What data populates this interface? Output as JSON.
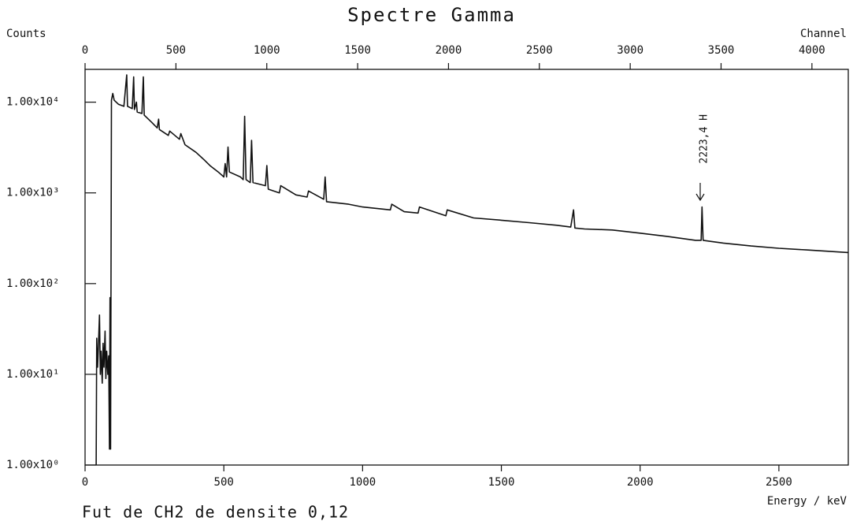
{
  "chart_data": {
    "type": "line",
    "title": "Spectre Gamma",
    "y_label": "Counts",
    "x_label": "Energy / keV",
    "x2_label": "Channel",
    "footnote": "Fut de CH2 de densite 0,12",
    "annotation": "2223,4 H",
    "color": "#111111",
    "log_y": true,
    "xlim": [
      0,
      2750
    ],
    "xticks": [
      0,
      500,
      1000,
      1500,
      2000,
      2500
    ],
    "x2lim": [
      0,
      4200
    ],
    "x2ticks": [
      0,
      500,
      1000,
      1500,
      2000,
      2500,
      3000,
      3500,
      4000
    ],
    "ylim": [
      1,
      23000
    ],
    "yticks": [
      {
        "value": 1,
        "label": "1.00x10⁰"
      },
      {
        "value": 10,
        "label": "1.00x10¹"
      },
      {
        "value": 100,
        "label": "1.00x10²"
      },
      {
        "value": 1000,
        "label": "1.00x10³"
      },
      {
        "value": 10000,
        "label": "1.00x10⁴"
      }
    ],
    "x": [
      40,
      42,
      45,
      48,
      52,
      55,
      58,
      62,
      65,
      68,
      72,
      75,
      78,
      82,
      85,
      88,
      90,
      92,
      95,
      100,
      105,
      120,
      140,
      150,
      153,
      170,
      175,
      178,
      185,
      188,
      205,
      210,
      213,
      240,
      260,
      265,
      268,
      300,
      305,
      340,
      345,
      360,
      400,
      430,
      450,
      480,
      500,
      505,
      510,
      515,
      520,
      560,
      570,
      575,
      580,
      595,
      600,
      605,
      650,
      655,
      660,
      700,
      705,
      760,
      800,
      805,
      860,
      865,
      870,
      950,
      1000,
      1100,
      1105,
      1150,
      1200,
      1205,
      1300,
      1305,
      1400,
      1500,
      1600,
      1700,
      1750,
      1760,
      1765,
      1800,
      1900,
      2000,
      2100,
      2200,
      2220,
      2223,
      2227,
      2300,
      2400,
      2500,
      2600,
      2700,
      2750
    ],
    "values": [
      1,
      25,
      12,
      20,
      45,
      10,
      18,
      8,
      22,
      12,
      30,
      9,
      18,
      10,
      16,
      1.5,
      70,
      1.5,
      10500,
      12500,
      10500,
      9500,
      9000,
      20000,
      9000,
      8500,
      19000,
      8300,
      10000,
      7800,
      7500,
      19000,
      7200,
      6000,
      5200,
      6500,
      5000,
      4300,
      4800,
      3900,
      4500,
      3400,
      2800,
      2300,
      2000,
      1700,
      1500,
      2100,
      1500,
      3200,
      1700,
      1500,
      1400,
      7000,
      1400,
      1300,
      3800,
      1300,
      1200,
      2000,
      1100,
      1000,
      1200,
      950,
      900,
      1050,
      850,
      1500,
      800,
      750,
      700,
      650,
      750,
      620,
      600,
      700,
      560,
      650,
      530,
      500,
      470,
      440,
      420,
      650,
      410,
      400,
      390,
      360,
      330,
      300,
      300,
      700,
      300,
      280,
      260,
      245,
      235,
      225,
      220
    ]
  }
}
